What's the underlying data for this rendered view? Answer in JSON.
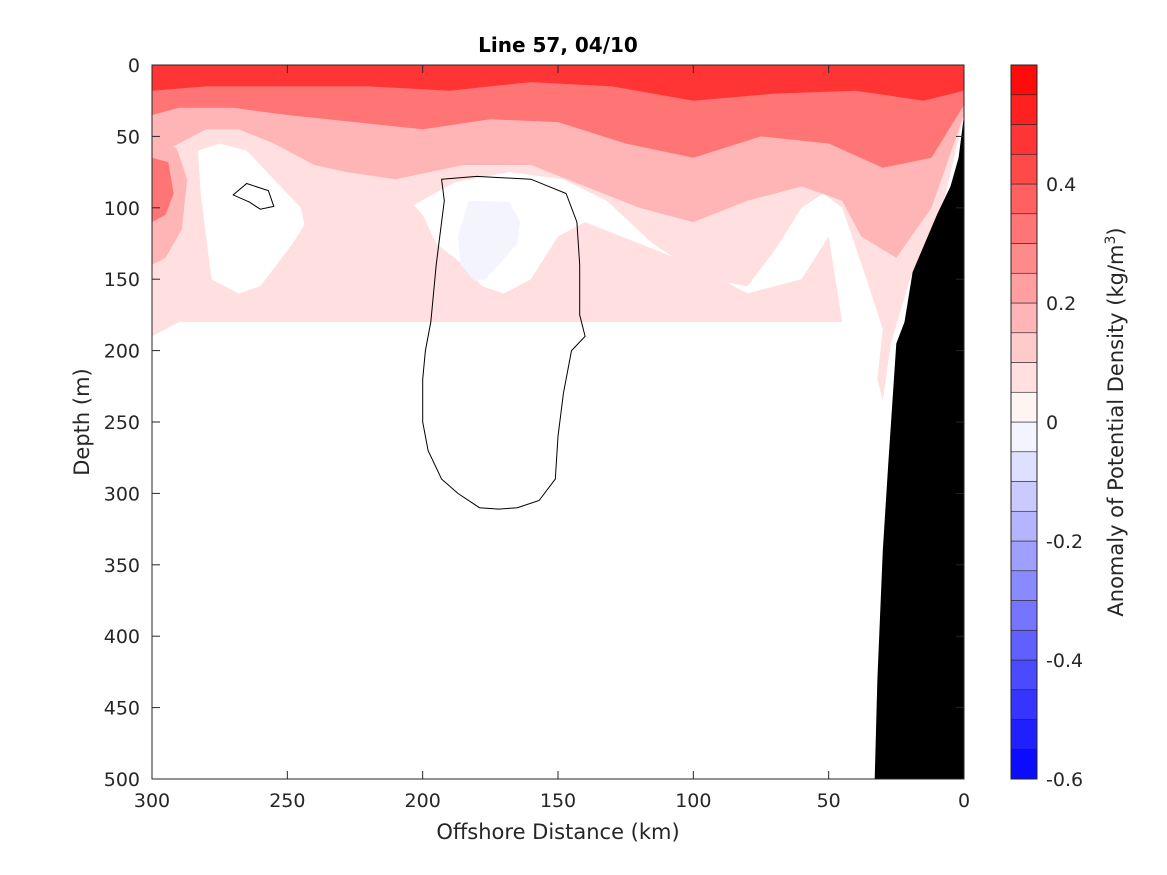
{
  "chart_data": {
    "type": "heatmap",
    "title": "Line 57, 04/10",
    "xlabel": "Offshore Distance (km)",
    "ylabel": "Depth (m)",
    "colorbar_label_main": "Anomaly of Potential Density (kg/m",
    "colorbar_label_sup": "3",
    "colorbar_label_close": ")",
    "xlim": [
      300,
      0
    ],
    "x_reversed": true,
    "ylim": [
      0,
      500
    ],
    "y_reversed": true,
    "x_ticks": [
      300,
      250,
      200,
      150,
      100,
      50,
      0
    ],
    "y_ticks": [
      0,
      50,
      100,
      150,
      200,
      250,
      300,
      350,
      400,
      450,
      500
    ],
    "colorbar_range": [
      -0.6,
      0.6
    ],
    "colorbar_ticks": [
      0.4,
      0.2,
      0,
      -0.2,
      -0.4,
      -0.6
    ],
    "colorbar_levels": 24,
    "colormap": {
      "negative": "#0000ff",
      "zero": "#ffffff",
      "positive": "#ff0000"
    },
    "zero_contour_color": "#000000",
    "bathymetry_color": "#000000",
    "fields": [
      {
        "name": "surface-layer",
        "levels": [
          {
            "value": 0.05,
            "points": [
              [
                300,
                0
              ],
              [
                0,
                0
              ],
              [
                0,
                35
              ],
              [
                8,
                100
              ],
              [
                20,
                150
              ],
              [
                27,
                195
              ],
              [
                30,
                235
              ],
              [
                32,
                220
              ],
              [
                30,
                185
              ],
              [
                36,
                150
              ],
              [
                45,
                100
              ],
              [
                52,
                90
              ],
              [
                60,
                100
              ],
              [
                70,
                130
              ],
              [
                80,
                155
              ],
              [
                95,
                150
              ],
              [
                115,
                125
              ],
              [
                132,
                95
              ],
              [
                148,
                80
              ],
              [
                168,
                75
              ],
              [
                188,
                82
              ],
              [
                205,
                100
              ],
              [
                220,
                130
              ],
              [
                230,
                160
              ],
              [
                240,
                145
              ],
              [
                245,
                100
              ],
              [
                255,
                80
              ],
              [
                265,
                60
              ],
              [
                275,
                55
              ],
              [
                283,
                60
              ],
              [
                282,
                90
              ],
              [
                278,
                150
              ],
              [
                268,
                160
              ],
              [
                260,
                155
              ],
              [
                248,
                125
              ],
              [
                238,
                95
              ],
              [
                225,
                80
              ],
              [
                210,
                85
              ],
              [
                200,
                105
              ],
              [
                195,
                125
              ],
              [
                185,
                140
              ],
              [
                178,
                155
              ],
              [
                170,
                160
              ],
              [
                160,
                150
              ],
              [
                150,
                120
              ],
              [
                140,
                110
              ],
              [
                120,
                125
              ],
              [
                100,
                140
              ],
              [
                80,
                160
              ],
              [
                60,
                150
              ],
              [
                50,
                120
              ],
              [
                45,
                180
              ],
              [
                290,
                180
              ],
              [
                300,
                190
              ]
            ]
          },
          {
            "value": 0.15,
            "points": [
              [
                300,
                0
              ],
              [
                0,
                0
              ],
              [
                0,
                35
              ],
              [
                12,
                100
              ],
              [
                25,
                135
              ],
              [
                38,
                120
              ],
              [
                45,
                95
              ],
              [
                60,
                85
              ],
              [
                80,
                95
              ],
              [
                100,
                110
              ],
              [
                120,
                100
              ],
              [
                140,
                85
              ],
              [
                160,
                70
              ],
              [
                185,
                70
              ],
              [
                210,
                80
              ],
              [
                228,
                75
              ],
              [
                240,
                70
              ],
              [
                255,
                55
              ],
              [
                268,
                45
              ],
              [
                280,
                45
              ],
              [
                290,
                55
              ],
              [
                300,
                65
              ]
            ]
          },
          {
            "value": 0.3,
            "points": [
              [
                300,
                0
              ],
              [
                0,
                0
              ],
              [
                0,
                28
              ],
              [
                12,
                65
              ],
              [
                30,
                72
              ],
              [
                50,
                55
              ],
              [
                75,
                50
              ],
              [
                100,
                65
              ],
              [
                125,
                55
              ],
              [
                150,
                40
              ],
              [
                175,
                38
              ],
              [
                200,
                45
              ],
              [
                225,
                40
              ],
              [
                250,
                35
              ],
              [
                270,
                30
              ],
              [
                290,
                30
              ],
              [
                300,
                35
              ]
            ]
          },
          {
            "value": 0.45,
            "points": [
              [
                300,
                0
              ],
              [
                0,
                0
              ],
              [
                0,
                18
              ],
              [
                15,
                25
              ],
              [
                40,
                18
              ],
              [
                70,
                20
              ],
              [
                100,
                25
              ],
              [
                130,
                15
              ],
              [
                160,
                12
              ],
              [
                190,
                18
              ],
              [
                220,
                15
              ],
              [
                250,
                15
              ],
              [
                280,
                15
              ],
              [
                300,
                18
              ]
            ]
          }
        ]
      },
      {
        "name": "left-warm-lens",
        "levels": [
          {
            "value": 0.15,
            "points": [
              [
                300,
                55
              ],
              [
                291,
                58
              ],
              [
                287,
                80
              ],
              [
                289,
                115
              ],
              [
                295,
                135
              ],
              [
                300,
                140
              ]
            ]
          },
          {
            "value": 0.3,
            "points": [
              [
                300,
                65
              ],
              [
                294,
                68
              ],
              [
                292,
                90
              ],
              [
                295,
                105
              ],
              [
                300,
                110
              ]
            ]
          }
        ]
      },
      {
        "name": "negative-anomaly",
        "levels": [
          {
            "value": -0.05,
            "points": [
              [
                183,
                95
              ],
              [
                168,
                96
              ],
              [
                164,
                110
              ],
              [
                165,
                125
              ],
              [
                171,
                138
              ],
              [
                177,
                150
              ],
              [
                181,
                151
              ],
              [
                186,
                140
              ],
              [
                187,
                120
              ]
            ]
          }
        ]
      }
    ],
    "zero_contours": [
      {
        "points": [
          [
            193,
            80
          ],
          [
            180,
            78
          ],
          [
            160,
            80
          ],
          [
            147,
            90
          ],
          [
            143,
            110
          ],
          [
            142,
            140
          ],
          [
            142,
            175
          ],
          [
            140,
            190
          ],
          [
            145,
            200
          ],
          [
            148,
            230
          ],
          [
            150,
            260
          ],
          [
            151,
            290
          ],
          [
            157,
            305
          ],
          [
            165,
            310
          ],
          [
            172,
            311
          ],
          [
            179,
            310
          ],
          [
            187,
            300
          ],
          [
            193,
            290
          ],
          [
            198,
            270
          ],
          [
            200,
            250
          ],
          [
            200,
            220
          ],
          [
            199,
            200
          ],
          [
            197,
            180
          ],
          [
            196,
            160
          ],
          [
            195,
            140
          ],
          [
            193,
            110
          ],
          [
            192,
            95
          ]
        ]
      },
      {
        "points": [
          [
            265,
            83
          ],
          [
            257,
            88
          ],
          [
            255,
            99
          ],
          [
            260,
            101
          ],
          [
            264,
            96
          ],
          [
            270,
            91
          ]
        ]
      }
    ],
    "bathymetry": [
      [
        0,
        35
      ],
      [
        2,
        65
      ],
      [
        5,
        85
      ],
      [
        10,
        105
      ],
      [
        19,
        145
      ],
      [
        22,
        180
      ],
      [
        25,
        195
      ],
      [
        28,
        280
      ],
      [
        30,
        340
      ],
      [
        32,
        430
      ],
      [
        33,
        500
      ],
      [
        0,
        500
      ]
    ]
  }
}
